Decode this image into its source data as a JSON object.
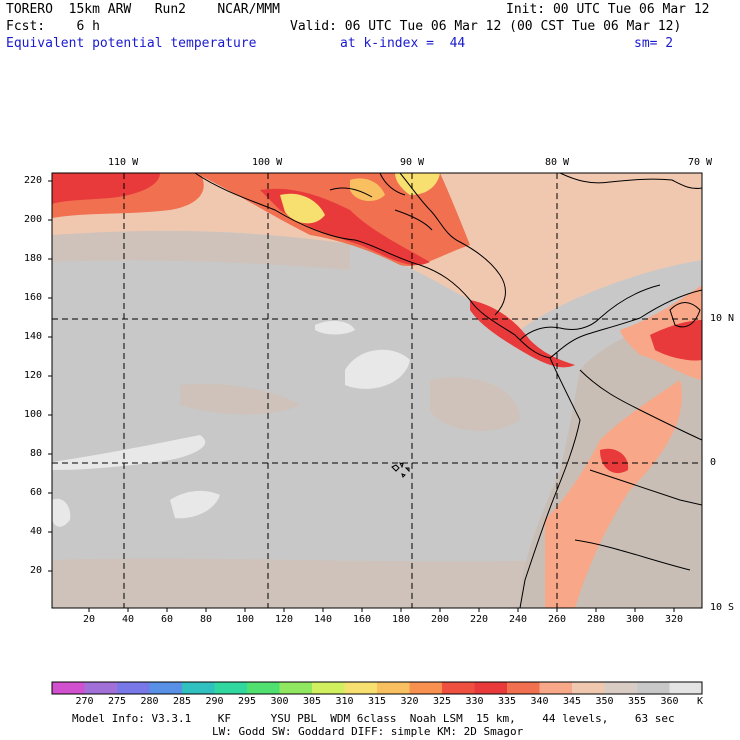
{
  "header": {
    "model": "TORERO  15km ARW   Run2    NCAR/MMM",
    "init": "Init: 00 UTC Tue 06 Mar 12",
    "fcst": "Fcst:    6 h",
    "valid": "Valid: 06 UTC Tue 06 Mar 12 (00 CST Tue 06 Mar 12)",
    "field": "Equivalent potential temperature",
    "level": "at k-index =  44",
    "smooth": "sm= 2"
  },
  "map": {
    "lon_labels": [
      "110 W",
      "100 W",
      "90 W",
      "80 W",
      "70 W"
    ],
    "lat_labels": [
      "10 N",
      "0",
      "10 S"
    ],
    "y_ticks": [
      "220",
      "200",
      "180",
      "160",
      "140",
      "120",
      "100",
      "80",
      "60",
      "40",
      "20"
    ],
    "x_ticks": [
      "20",
      "40",
      "60",
      "80",
      "100",
      "120",
      "140",
      "160",
      "180",
      "200",
      "220",
      "240",
      "260",
      "280",
      "300",
      "320"
    ],
    "ocean_color": "#c8c8c8",
    "land_color": "#c8beb6"
  },
  "colorbar": {
    "labels": [
      "270",
      "275",
      "280",
      "285",
      "290",
      "295",
      "300",
      "305",
      "310",
      "315",
      "320",
      "325",
      "330",
      "335",
      "340",
      "345",
      "350",
      "355",
      "360"
    ],
    "unit": "K",
    "colors": [
      "#d050d0",
      "#a070d8",
      "#7878e8",
      "#5890e8",
      "#30c0c0",
      "#30d8a0",
      "#50e070",
      "#90e860",
      "#d0f060",
      "#f8e070",
      "#f8c060",
      "#f89050",
      "#f05040",
      "#e83a3a",
      "#f07050",
      "#f8a888",
      "#f0c8b0",
      "#d8ccc4",
      "#c8c8c8",
      "#e4e4e4"
    ]
  },
  "footer": {
    "line1": "Model Info: V3.3.1    KF      YSU PBL  WDM 6class  Noah LSM  15 km,    44 levels,    63 sec",
    "line2": "LW: Godd SW: Goddard DIFF: simple KM: 2D Smagor"
  }
}
